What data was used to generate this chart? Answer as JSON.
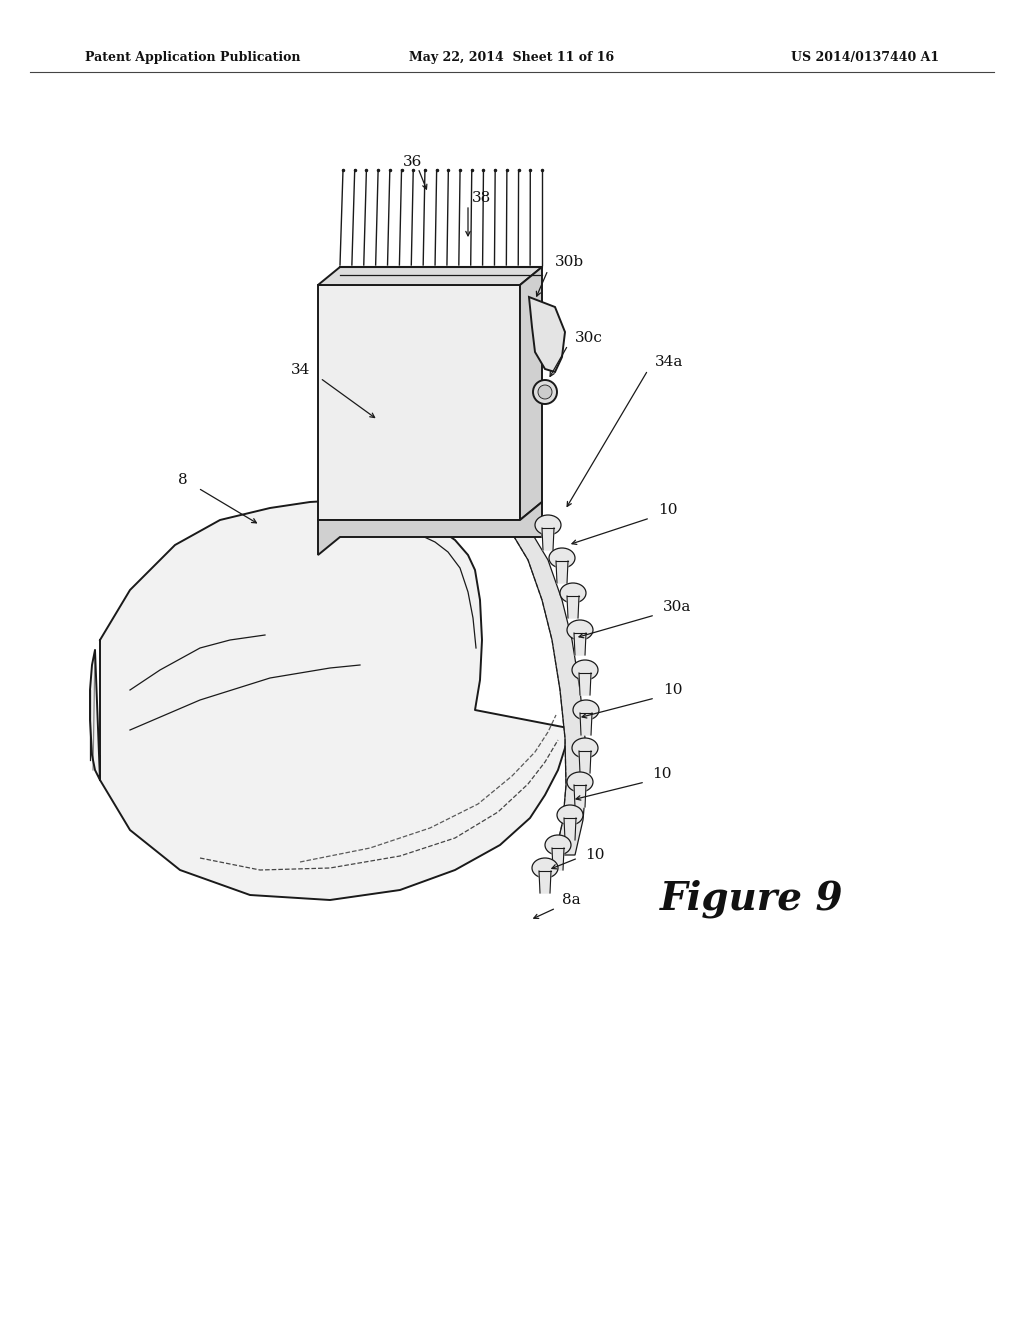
{
  "bg_color": "#ffffff",
  "header_left": "Patent Application Publication",
  "header_mid": "May 22, 2014  Sheet 11 of 16",
  "header_right": "US 2014/0137440 A1",
  "figure_label": "Figure 9",
  "line_color": "#1a1a1a",
  "fill_shoe": "#f2f2f2",
  "fill_brush": "#eeeeee",
  "fill_brush_top": "#dddddd",
  "fill_brush_side": "#d0d0d0",
  "fill_spike": "#e8e8e8"
}
